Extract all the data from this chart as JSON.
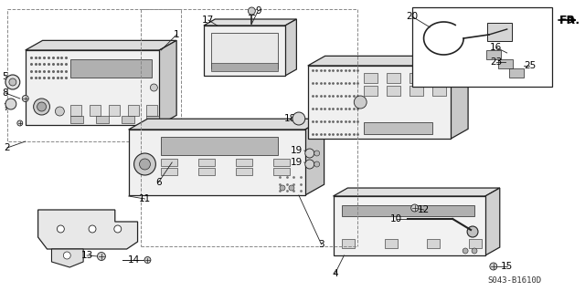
{
  "background_color": "#ffffff",
  "diagram_code": "S043-B1610D",
  "line_color": "#222222",
  "text_color": "#000000",
  "face_color": "#f0f0f0",
  "top_color": "#e0e0e0",
  "side_color": "#d0d0d0",
  "dark_color": "#888888",
  "grille_color": "#555555"
}
